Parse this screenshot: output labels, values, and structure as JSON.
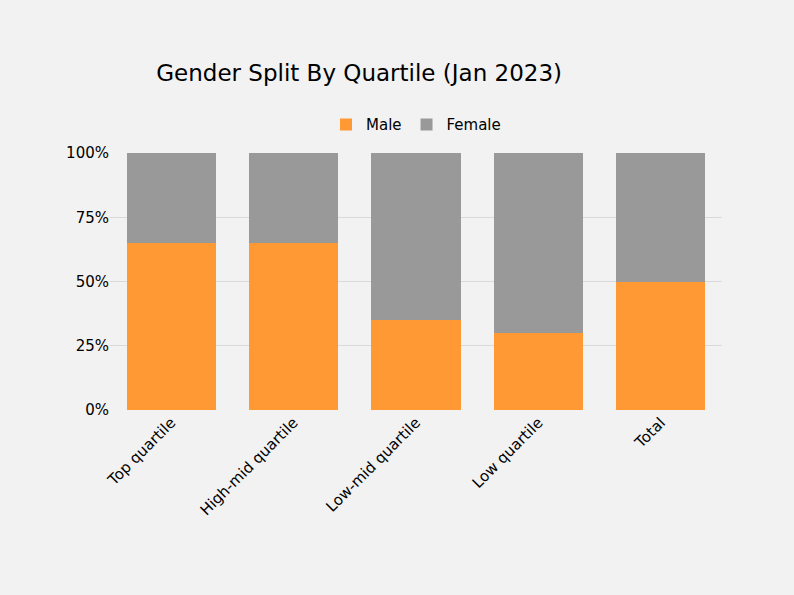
{
  "chart_data": {
    "type": "bar",
    "title": "Gender Split By Quartile (Jan 2023)",
    "categories": [
      "Top quartile",
      "High-mid quartile",
      "Low-mid quartile",
      "Low quartile",
      "Total"
    ],
    "series": [
      {
        "name": "Male",
        "color": "#ff9933",
        "values": [
          65,
          65,
          35,
          30,
          50
        ]
      },
      {
        "name": "Female",
        "color": "#999999",
        "values": [
          35,
          35,
          65,
          70,
          50
        ]
      }
    ],
    "stacked": true,
    "ylim": [
      0,
      100
    ],
    "yticks": [
      {
        "value": 0,
        "label": "0%"
      },
      {
        "value": 25,
        "label": "25%"
      },
      {
        "value": 50,
        "label": "50%"
      },
      {
        "value": 75,
        "label": "75%"
      },
      {
        "value": 100,
        "label": "100%"
      }
    ],
    "grid": true,
    "legend": "top"
  }
}
